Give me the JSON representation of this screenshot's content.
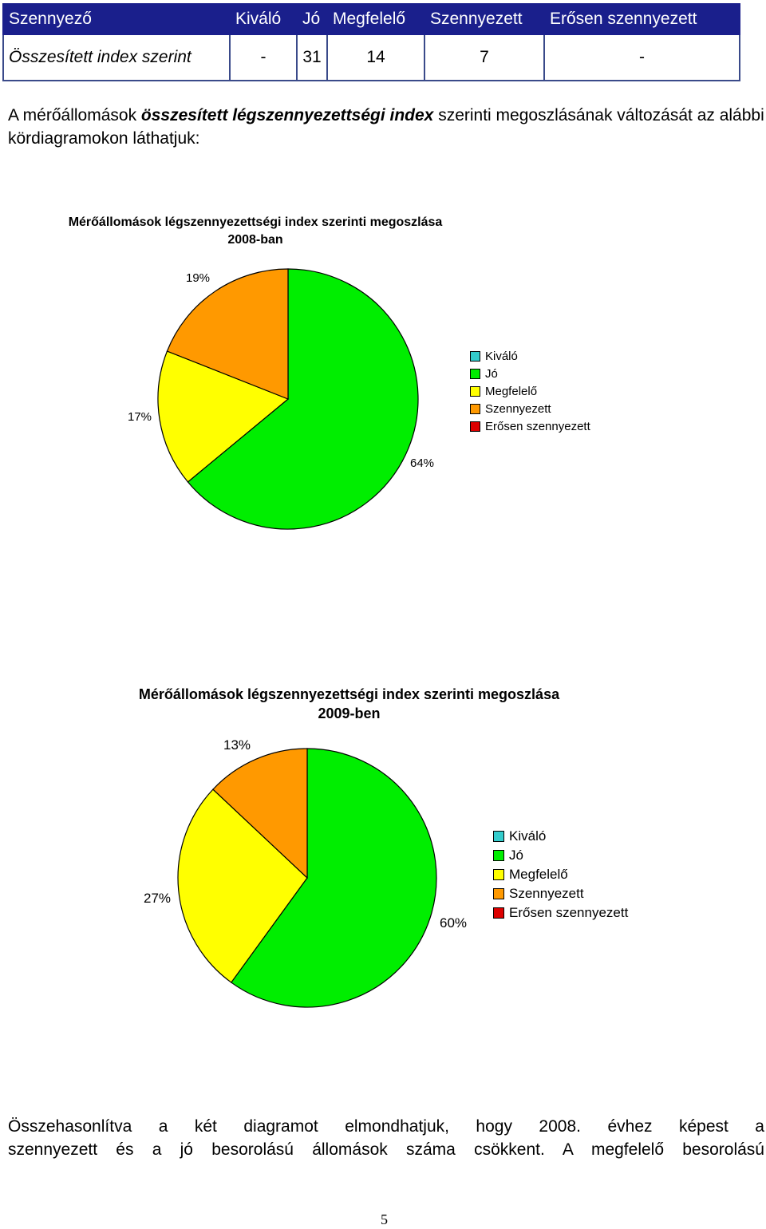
{
  "table": {
    "headers": [
      "Szennyező",
      "Kiváló",
      "Jó",
      "Megfelelő",
      "Szennyezett",
      "Erősen szennyezett"
    ],
    "row": [
      "Összesített index szerint",
      "-",
      "31",
      "14",
      "7",
      "-"
    ]
  },
  "intro": {
    "part1": "A mérőállomások ",
    "emph": "összesített légszennyezettségi index",
    "part2": " szerinti megoszlásának változását az alábbi kördiagramokon láthatjuk:"
  },
  "chart_data": [
    {
      "type": "pie",
      "title_line1": "Mérőállomások légszennyezettségi index szerinti megoszlása",
      "title_line2": "2008-ban",
      "categories": [
        "Kiváló",
        "Jó",
        "Megfelelő",
        "Szennyezett",
        "Erősen szennyezett"
      ],
      "values": [
        0,
        64,
        17,
        19,
        0
      ],
      "labels": [
        "64%",
        "17%",
        "19%"
      ],
      "colors": [
        "#33cccc",
        "#00ee00",
        "#ffff00",
        "#ff9900",
        "#dd0000"
      ],
      "legend": [
        "Kiváló",
        "Jó",
        "Megfelelő",
        "Szennyezett",
        "Erősen szennyezett"
      ],
      "legend_position": "right"
    },
    {
      "type": "pie",
      "title_line1": "Mérőállomások légszennyezettségi index szerinti megoszlása",
      "title_line2": "2009-ben",
      "categories": [
        "Kiváló",
        "Jó",
        "Megfelelő",
        "Szennyezett",
        "Erősen szennyezett"
      ],
      "values": [
        0,
        60,
        27,
        13,
        0
      ],
      "labels": [
        "60%",
        "27%",
        "13%"
      ],
      "colors": [
        "#33cccc",
        "#00ee00",
        "#ffff00",
        "#ff9900",
        "#dd0000"
      ],
      "legend": [
        "Kiváló",
        "Jó",
        "Megfelelő",
        "Szennyezett",
        "Erősen szennyezett"
      ],
      "legend_position": "right"
    }
  ],
  "outro": {
    "line1": "Összehasonlítva a két diagramot elmondhatjuk, hogy 2008. évhez képest a",
    "line2": "szennyezett és a jó besorolású állomások száma csökkent. A megfelelő besorolású"
  },
  "page_number": "5"
}
